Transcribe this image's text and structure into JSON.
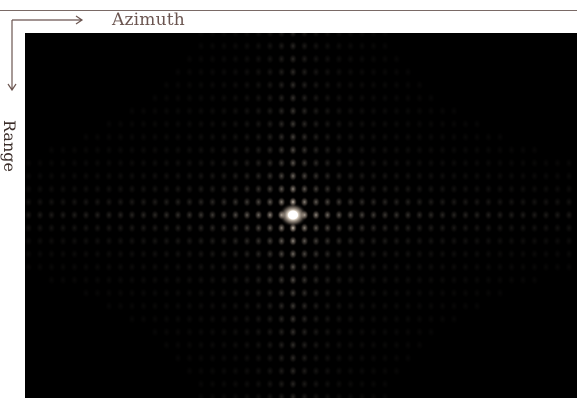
{
  "figure": {
    "azimuth_label": "Azimuth",
    "range_label": "Range",
    "colors": {
      "background": "#000000",
      "peak": "#fff6e8",
      "sidelobe": "#c8b8a8",
      "label": "#6b5550",
      "arrow": "#6b5550"
    },
    "icons": {
      "azimuth_arrow": "arrow-right-icon",
      "range_arrow": "arrow-down-icon"
    },
    "point_target": {
      "description_shown": false,
      "peak_intensity": 1.0,
      "sidelobe_count_azimuth": 24,
      "sidelobe_count_range": 14
    }
  }
}
